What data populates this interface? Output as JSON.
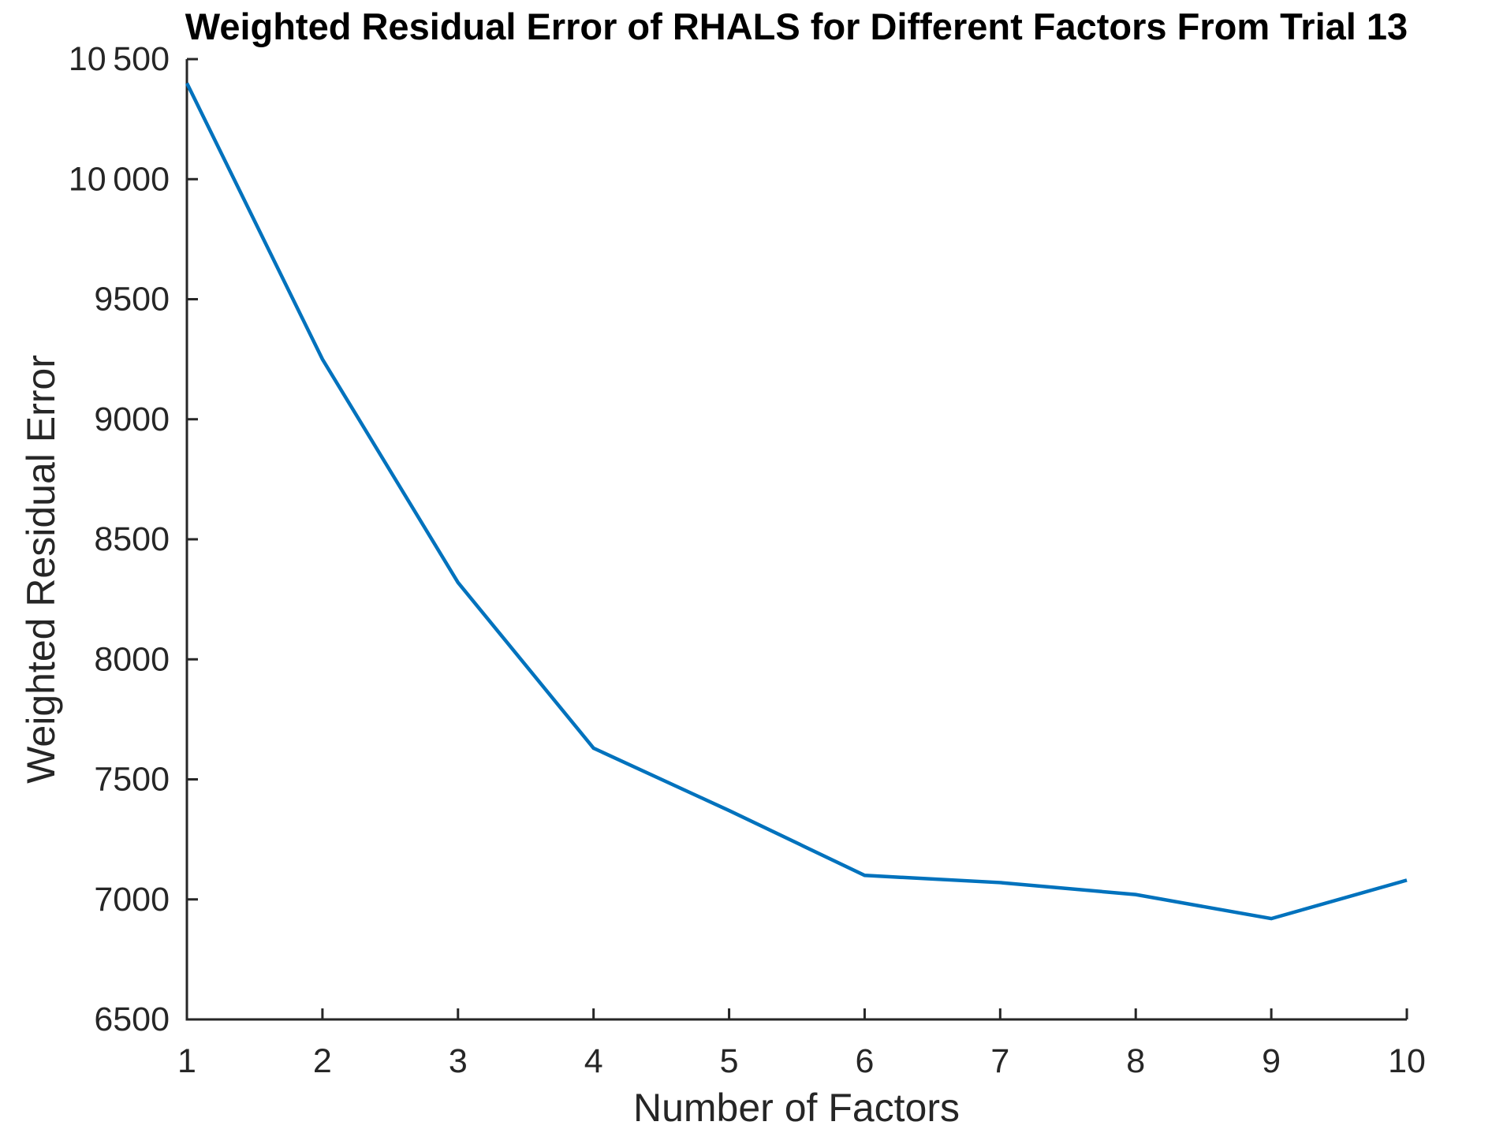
{
  "chart_data": {
    "type": "line",
    "title": "Weighted Residual Error of RHALS for Different Factors From Trial 13",
    "xlabel": "Number of Factors",
    "ylabel": "Weighted Residual Error",
    "x": [
      1,
      2,
      3,
      4,
      5,
      6,
      7,
      8,
      9,
      10
    ],
    "values": [
      10400,
      9250,
      8320,
      7630,
      7370,
      7100,
      7070,
      7020,
      6920,
      7080
    ],
    "xlim": [
      1,
      10
    ],
    "ylim": [
      6500,
      10500
    ],
    "x_ticks": [
      1,
      2,
      3,
      4,
      5,
      6,
      7,
      8,
      9,
      10
    ],
    "x_tick_labels": [
      "1",
      "2",
      "3",
      "4",
      "5",
      "6",
      "7",
      "8",
      "9",
      "10"
    ],
    "y_ticks": [
      6500,
      7000,
      7500,
      8000,
      8500,
      9000,
      9500,
      10000,
      10500
    ],
    "y_tick_labels": [
      "6500",
      "7000",
      "7500",
      "8000",
      "8500",
      "9000",
      "9500",
      "10 000",
      "10 500"
    ],
    "grid": false,
    "legend": "none",
    "line_color": "#0072BD",
    "axis_color": "#262626",
    "background": "#ffffff"
  }
}
